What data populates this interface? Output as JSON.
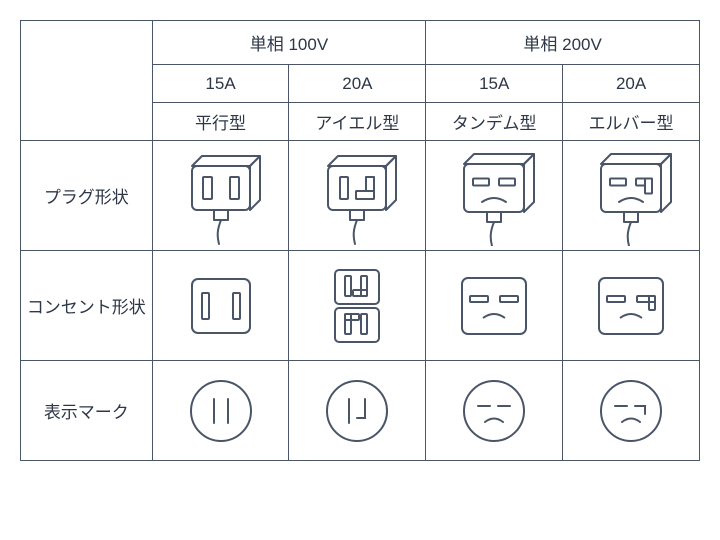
{
  "colors": {
    "stroke": "#4a5568",
    "text": "#2d3748",
    "bg": "#ffffff"
  },
  "layout": {
    "col_label_w": 138,
    "col_data_w": 135,
    "row_hdr1_h": 44,
    "row_hdr2_h": 38,
    "row_hdr3_h": 38,
    "row_plug_h": 110,
    "row_outlet_h": 110,
    "row_mark_h": 100,
    "font_size_hdr": 17,
    "font_size_label": 16,
    "border_w": 1.5
  },
  "headers": {
    "voltage": [
      "単相 100V",
      "単相 200V"
    ],
    "amperage": [
      "15A",
      "20A",
      "15A",
      "20A"
    ],
    "type_name": [
      "平行型",
      "アイエル型",
      "タンデム型",
      "エルバー型"
    ]
  },
  "row_labels": {
    "plug": "プラグ形状",
    "outlet": "コンセント形状",
    "mark": "表示マーク"
  }
}
